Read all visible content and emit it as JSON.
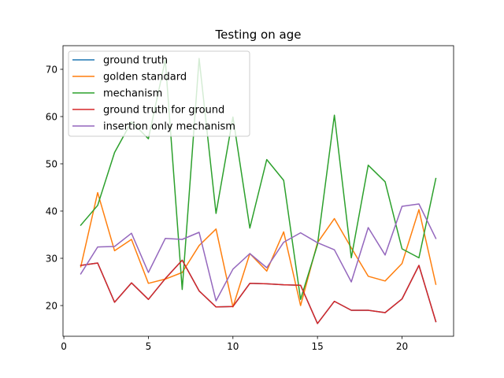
{
  "chart_data": {
    "type": "line",
    "title": "Testing on age",
    "xlabel": "",
    "ylabel": "",
    "xlim": [
      -0.05,
      23.05
    ],
    "ylim": [
      13.5,
      75
    ],
    "xticks": [
      0,
      5,
      10,
      15,
      20
    ],
    "yticks": [
      20,
      30,
      40,
      50,
      60,
      70
    ],
    "grid": false,
    "legend_position": "top-left",
    "x": [
      1,
      2,
      3,
      4,
      5,
      6,
      7,
      8,
      9,
      10,
      11,
      12,
      13,
      14,
      15,
      16,
      17,
      18,
      19,
      20,
      21,
      22
    ],
    "series": [
      {
        "name": "ground truth",
        "color": "#1f77b4",
        "values": [
          28.5,
          29.0,
          20.7,
          24.8,
          21.3,
          25.7,
          29.6,
          23.1,
          19.7,
          19.8,
          24.7,
          24.6,
          24.4,
          24.3,
          16.2,
          20.9,
          19.0,
          19.0,
          18.5,
          21.4,
          28.5,
          16.6
        ]
      },
      {
        "name": "golden standard",
        "color": "#ff7f0e",
        "values": [
          28.2,
          43.9,
          31.6,
          34.0,
          24.7,
          25.6,
          27.0,
          32.7,
          36.2,
          19.7,
          31.0,
          27.3,
          35.6,
          20.0,
          33.3,
          38.4,
          32.2,
          26.2,
          25.2,
          28.9,
          40.3,
          24.5
        ]
      },
      {
        "name": "mechanism",
        "color": "#2ca02c",
        "values": [
          37.0,
          41.2,
          52.4,
          58.9,
          55.3,
          72.0,
          23.4,
          72.3,
          39.5,
          59.9,
          36.4,
          50.9,
          46.5,
          21.3,
          32.9,
          60.3,
          30.1,
          49.7,
          46.2,
          32.0,
          30.1,
          46.9
        ]
      },
      {
        "name": "ground truth for ground",
        "color": "#d62728",
        "values": [
          28.5,
          29.0,
          20.7,
          24.8,
          21.3,
          25.7,
          29.6,
          23.1,
          19.7,
          19.8,
          24.7,
          24.6,
          24.4,
          24.3,
          16.2,
          20.9,
          19.0,
          19.0,
          18.5,
          21.4,
          28.5,
          16.6
        ]
      },
      {
        "name": "insertion only mechanism",
        "color": "#9467bd",
        "values": [
          26.7,
          32.4,
          32.5,
          35.3,
          27.0,
          34.2,
          34.0,
          35.5,
          21.0,
          27.7,
          31.0,
          28.0,
          33.4,
          35.4,
          33.3,
          31.8,
          25.0,
          36.5,
          30.7,
          41.0,
          41.5,
          34.2
        ]
      }
    ]
  }
}
